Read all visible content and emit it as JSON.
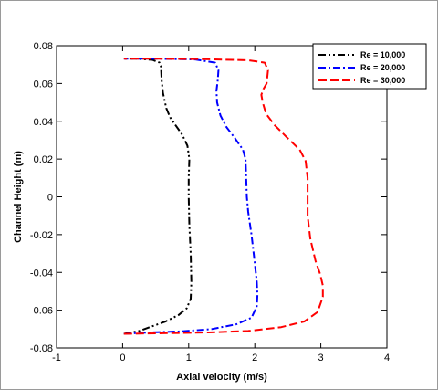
{
  "chart_data": {
    "type": "line",
    "xlabel": "Axial velocity (m/s)",
    "ylabel": "Channel Height (m)",
    "xlim": [
      -1,
      4
    ],
    "ylim": [
      -0.08,
      0.08
    ],
    "xticks": [
      -1,
      0,
      1,
      2,
      3,
      4
    ],
    "yticks": [
      -0.08,
      -0.06,
      -0.04,
      -0.02,
      0,
      0.02,
      0.04,
      0.06,
      0.08
    ],
    "grid": false,
    "legend_position": "top-right",
    "series": [
      {
        "name": "Re = 10,000",
        "color": "#000000",
        "dash": "dash-dot-dot",
        "x": [
          0.02,
          0.25,
          0.45,
          0.65,
          0.85,
          0.97,
          1.03,
          1.04,
          1.03,
          1.01,
          1.0,
          1.0,
          1.01,
          0.98,
          0.9,
          0.8,
          0.72,
          0.66,
          0.61,
          0.59,
          0.58,
          0.56,
          0.45,
          0.2,
          0.02
        ],
        "y": [
          -0.0725,
          -0.071,
          -0.0685,
          -0.066,
          -0.0625,
          -0.059,
          -0.054,
          -0.045,
          -0.03,
          -0.015,
          0.0,
          0.01,
          0.02,
          0.027,
          0.033,
          0.038,
          0.042,
          0.047,
          0.055,
          0.062,
          0.069,
          0.071,
          0.0725,
          0.0731,
          0.0731
        ]
      },
      {
        "name": "Re = 20,000",
        "color": "#0000ff",
        "dash": "dash-dot",
        "x": [
          0.02,
          0.4,
          0.9,
          1.35,
          1.72,
          1.95,
          2.03,
          2.04,
          2.03,
          2.0,
          1.95,
          1.9,
          1.88,
          1.87,
          1.86,
          1.82,
          1.7,
          1.57,
          1.48,
          1.43,
          1.42,
          1.44,
          1.45,
          1.4,
          1.1,
          0.5,
          0.02
        ],
        "y": [
          -0.0725,
          -0.0718,
          -0.0712,
          -0.07,
          -0.0675,
          -0.064,
          -0.058,
          -0.052,
          -0.045,
          -0.035,
          -0.02,
          -0.008,
          0.0,
          0.01,
          0.02,
          0.025,
          0.031,
          0.037,
          0.043,
          0.05,
          0.056,
          0.062,
          0.067,
          0.071,
          0.0727,
          0.0731,
          0.0731
        ]
      },
      {
        "name": "Re = 30,000",
        "color": "#ff0000",
        "dash": "dash",
        "x": [
          0.02,
          0.6,
          1.3,
          1.9,
          2.4,
          2.75,
          2.95,
          3.03,
          3.03,
          2.99,
          2.92,
          2.84,
          2.8,
          2.8,
          2.8,
          2.77,
          2.68,
          2.5,
          2.3,
          2.17,
          2.12,
          2.1,
          2.13,
          2.18,
          2.2,
          2.15,
          1.9,
          1.2,
          0.5,
          0.02
        ],
        "y": [
          -0.0725,
          -0.0722,
          -0.0718,
          -0.071,
          -0.069,
          -0.066,
          -0.061,
          -0.053,
          -0.047,
          -0.041,
          -0.034,
          -0.022,
          -0.01,
          0.0,
          0.01,
          0.019,
          0.025,
          0.031,
          0.038,
          0.044,
          0.05,
          0.054,
          0.057,
          0.06,
          0.067,
          0.071,
          0.0723,
          0.0729,
          0.0731,
          0.0731
        ]
      }
    ]
  }
}
